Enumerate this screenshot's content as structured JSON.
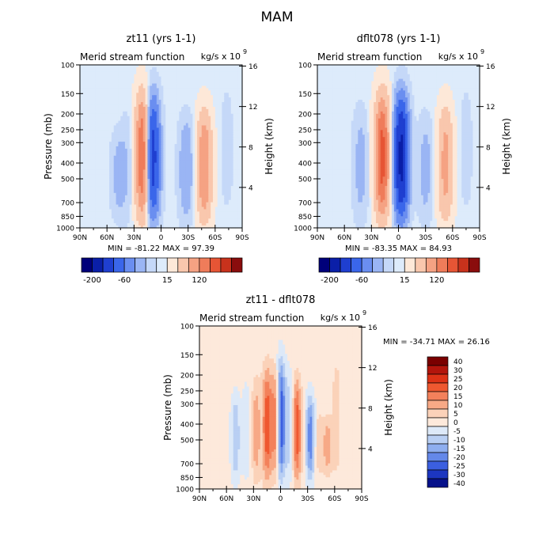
{
  "page_title": "MAM",
  "chart_data": [
    {
      "type": "heatmap",
      "title": "zt11 (yrs 1-1)",
      "subtitle": "Merid stream function",
      "units_label": "kg/s x 10",
      "units_exponent": "9",
      "ylabel": "Pressure (mb)",
      "right_ylabel": "Height (km)",
      "x_ticks": [
        "90N",
        "60N",
        "30N",
        "0",
        "30S",
        "60S",
        "90S"
      ],
      "y_ticks": [
        "100",
        "150",
        "200",
        "250",
        "300",
        "400",
        "500",
        "700",
        "850",
        "1000"
      ],
      "right_y_ticks": [
        "16",
        "12",
        "8",
        "4"
      ],
      "stats": "MIN = -81.22   MAX = 97.39",
      "min": -81.22,
      "max": 97.39,
      "colorbar_labels": [
        "-200",
        "-60",
        "15",
        "120"
      ],
      "features": [
        {
          "lat": 20,
          "value": 60,
          "top_mb": 140,
          "bottom_mb": 950
        },
        {
          "lat": 10,
          "value": -60,
          "top_mb": 145,
          "bottom_mb": 950
        },
        {
          "lat": 47,
          "value": -10,
          "top_mb": 250,
          "bottom_mb": 900
        },
        {
          "lat": 37,
          "value": -5,
          "top_mb": 180,
          "bottom_mb": 980
        },
        {
          "lat": -48,
          "value": 40,
          "top_mb": 180,
          "bottom_mb": 980
        },
        {
          "lat": -28,
          "value": -15,
          "top_mb": 200,
          "bottom_mb": 950
        },
        {
          "lat": -73,
          "value": -3,
          "top_mb": 120,
          "bottom_mb": 900
        }
      ]
    },
    {
      "type": "heatmap",
      "title": "dflt078 (yrs 1-1)",
      "subtitle": "Merid stream function",
      "units_label": "kg/s x 10",
      "units_exponent": "9",
      "ylabel": "",
      "right_ylabel": "Height (km)",
      "x_ticks": [
        "90N",
        "60N",
        "30N",
        "0",
        "30S",
        "60S",
        "90S"
      ],
      "y_ticks": [
        "100",
        "150",
        "200",
        "250",
        "300",
        "400",
        "500",
        "700",
        "850",
        "1000"
      ],
      "right_y_ticks": [
        "16",
        "12",
        "8",
        "4"
      ],
      "stats": "MIN = -83.35   MAX = 84.93",
      "min": -83.35,
      "max": 84.93,
      "colorbar_labels": [
        "-200",
        "-60",
        "15",
        "120"
      ],
      "features": [
        {
          "lat": 18,
          "value": 60,
          "top_mb": 140,
          "bottom_mb": 950
        },
        {
          "lat": -3,
          "value": -70,
          "top_mb": 145,
          "bottom_mb": 950
        },
        {
          "lat": 42,
          "value": -10,
          "top_mb": 180,
          "bottom_mb": 960
        },
        {
          "lat": -52,
          "value": 30,
          "top_mb": 170,
          "bottom_mb": 980
        },
        {
          "lat": -30,
          "value": -10,
          "top_mb": 200,
          "bottom_mb": 950
        },
        {
          "lat": -75,
          "value": -3,
          "top_mb": 120,
          "bottom_mb": 900
        }
      ]
    },
    {
      "type": "heatmap",
      "title": "zt11 - dflt078",
      "subtitle": "Merid stream function",
      "units_label": "kg/s x 10",
      "units_exponent": "9",
      "ylabel": "Pressure (mb)",
      "right_ylabel": "Height (km)",
      "x_ticks": [
        "90N",
        "60N",
        "30N",
        "0",
        "30S",
        "60S",
        "90S"
      ],
      "y_ticks": [
        "100",
        "150",
        "200",
        "250",
        "300",
        "400",
        "500",
        "700",
        "850",
        "1000"
      ],
      "right_y_ticks": [
        "16",
        "12",
        "8",
        "4"
      ],
      "stats": "MIN = -34.71   MAX = 26.16",
      "min": -34.71,
      "max": 26.16,
      "colorbar_labels": [
        "40",
        "30",
        "25",
        "20",
        "15",
        "10",
        "5",
        "0",
        "-5",
        "-10",
        "-15",
        "-20",
        "-25",
        "-30",
        "-40"
      ],
      "features": [
        {
          "lat": 50,
          "value": -12,
          "top_mb": 250,
          "bottom_mb": 950
        },
        {
          "lat": 38,
          "value": -5,
          "top_mb": 200,
          "bottom_mb": 980
        },
        {
          "lat": 27,
          "value": 10,
          "top_mb": 200,
          "bottom_mb": 950
        },
        {
          "lat": 15,
          "value": 20,
          "top_mb": 170,
          "bottom_mb": 950
        },
        {
          "lat": 5,
          "value": 20,
          "top_mb": 170,
          "bottom_mb": 900
        },
        {
          "lat": 0,
          "value": -30,
          "top_mb": 150,
          "bottom_mb": 950
        },
        {
          "lat": -10,
          "value": -10,
          "top_mb": 180,
          "bottom_mb": 950
        },
        {
          "lat": -18,
          "value": 20,
          "top_mb": 200,
          "bottom_mb": 950
        },
        {
          "lat": -33,
          "value": -20,
          "top_mb": 250,
          "bottom_mb": 950
        },
        {
          "lat": -42,
          "value": 5,
          "top_mb": 300,
          "bottom_mb": 900
        },
        {
          "lat": -52,
          "value": 10,
          "top_mb": 350,
          "bottom_mb": 850
        },
        {
          "lat": -62,
          "value": 5,
          "top_mb": 150,
          "bottom_mb": 900
        }
      ]
    }
  ],
  "colors": {
    "abs_palette": [
      "#00007a",
      "#0a1fa8",
      "#1f3fd0",
      "#3a66ea",
      "#6a8ef0",
      "#9ab5f4",
      "#c5d8f8",
      "#ddebfb",
      "#fde8d8",
      "#f9c7ad",
      "#f5a283",
      "#ef7c5a",
      "#e65535",
      "#c8321c",
      "#8a0d0d"
    ],
    "diff_palette": [
      "#7a0000",
      "#b3150c",
      "#dd3216",
      "#ef5830",
      "#f3815b",
      "#f7a986",
      "#fbd2b9",
      "#fde9db",
      "#dde9f8",
      "#b9cff3",
      "#8eaeef",
      "#6488e9",
      "#3b5fe0",
      "#1c36c0",
      "#06118a"
    ],
    "axis": "#000000"
  }
}
